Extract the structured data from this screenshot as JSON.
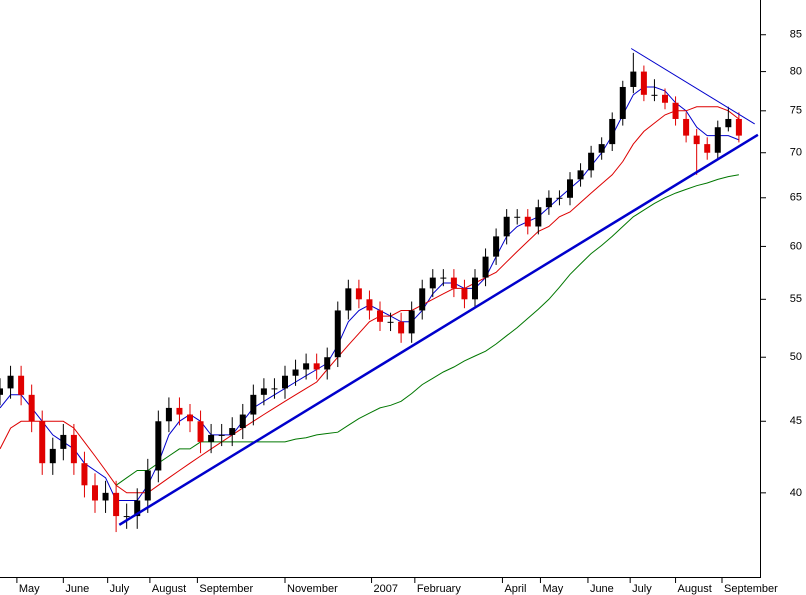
{
  "chart_data": {
    "type": "candlestick",
    "log_scale": true,
    "xlim": [
      0,
      72
    ],
    "ylim": [
      35,
      90
    ],
    "yticks": [
      40,
      45,
      50,
      55,
      60,
      65,
      70,
      75,
      80,
      85
    ],
    "xticks": [
      {
        "value": 1.6,
        "label": "May"
      },
      {
        "value": 6,
        "label": "June"
      },
      {
        "value": 10.2,
        "label": "July"
      },
      {
        "value": 14.2,
        "label": "August"
      },
      {
        "value": 18.7,
        "label": "September"
      },
      {
        "value": 27,
        "label": "November"
      },
      {
        "value": 35.2,
        "label": "2007"
      },
      {
        "value": 39.3,
        "label": "February"
      },
      {
        "value": 47.6,
        "label": "April"
      },
      {
        "value": 51.2,
        "label": "May"
      },
      {
        "value": 55.7,
        "label": "June"
      },
      {
        "value": 59.7,
        "label": "July"
      },
      {
        "value": 64,
        "label": "August"
      },
      {
        "value": 68.4,
        "label": "September"
      }
    ],
    "up_color": "#000000",
    "down_color": "#e00000",
    "x": [
      0,
      1,
      2,
      3,
      4,
      5,
      6,
      7,
      8,
      9,
      10,
      11,
      12,
      13,
      14,
      15,
      16,
      17,
      18,
      19,
      20,
      21,
      22,
      23,
      24,
      25,
      26,
      27,
      28,
      29,
      30,
      31,
      32,
      33,
      34,
      35,
      36,
      37,
      38,
      39,
      40,
      41,
      42,
      43,
      44,
      45,
      46,
      47,
      48,
      49,
      50,
      51,
      52,
      53,
      54,
      55,
      56,
      57,
      58,
      59,
      60,
      61,
      62,
      63,
      64,
      65,
      66,
      67,
      68,
      69,
      70
    ],
    "open": [
      47,
      47.5,
      48.5,
      47,
      45,
      42,
      43,
      44,
      42,
      40.5,
      39.5,
      40,
      38.5,
      38.5,
      39.5,
      41.5,
      45,
      46,
      45.5,
      45,
      43.5,
      44,
      44,
      44.5,
      45.5,
      47,
      47.5,
      47.5,
      48.5,
      49,
      49.5,
      49,
      50,
      54,
      56,
      55,
      54,
      53,
      53,
      52,
      54,
      56,
      57,
      57,
      56,
      55,
      57,
      59,
      61,
      63,
      63,
      62,
      64,
      65,
      65,
      67,
      68,
      70,
      71,
      74,
      78,
      80,
      77,
      77,
      76,
      74,
      72,
      71,
      70,
      73,
      74
    ],
    "high": [
      48.3,
      49.3,
      49.3,
      47.8,
      45.8,
      43.8,
      44.8,
      44.8,
      42.8,
      41.3,
      40.8,
      40.8,
      39.3,
      40.3,
      42.3,
      45.8,
      46.8,
      46.8,
      46.3,
      45.8,
      44.8,
      44.8,
      45.3,
      46.3,
      47.8,
      48.3,
      48.3,
      49.3,
      49.8,
      50.3,
      50.3,
      50.8,
      54.8,
      56.8,
      56.8,
      55.8,
      54.8,
      53.8,
      53.8,
      54.8,
      56.8,
      57.8,
      57.8,
      57.8,
      56.8,
      57.8,
      59.8,
      61.8,
      63.8,
      63.8,
      63.8,
      64.8,
      65.8,
      65.8,
      67.8,
      68.8,
      70.8,
      71.8,
      74.8,
      78.8,
      82.5,
      80.8,
      79,
      77.8,
      76.8,
      74.8,
      72.8,
      71.8,
      73.8,
      75.5,
      74.8
    ],
    "low": [
      46.2,
      46.7,
      46.2,
      44.2,
      41.2,
      41.2,
      42.2,
      41.2,
      39.7,
      38.7,
      38.7,
      37.5,
      37.7,
      37.7,
      38.7,
      40.7,
      44.2,
      44.7,
      44.2,
      42.7,
      42.7,
      43.2,
      43.2,
      43.7,
      44.7,
      46.2,
      46.7,
      46.7,
      47.7,
      48.2,
      48.2,
      48.2,
      49.2,
      53.2,
      54.2,
      53.2,
      52.2,
      52.2,
      51.2,
      51.2,
      53.2,
      55.2,
      56.2,
      55.2,
      54.2,
      54.2,
      56.2,
      58.2,
      60.2,
      62.2,
      61.2,
      61.2,
      63.2,
      64.2,
      64.2,
      66.2,
      67.2,
      69.2,
      70.2,
      73.2,
      77.2,
      76.2,
      76.2,
      75.2,
      73.2,
      71.2,
      67.5,
      69.2,
      69.2,
      72.5,
      71.2
    ],
    "close": [
      47.5,
      48.5,
      47,
      45,
      42,
      43,
      44,
      42,
      40.5,
      39.5,
      40,
      38.5,
      38.5,
      39.5,
      41.5,
      45,
      46,
      45.5,
      45,
      43.5,
      44,
      44,
      44.5,
      45.5,
      47,
      47.5,
      47.5,
      48.5,
      49,
      49.5,
      49,
      50,
      54,
      56,
      55,
      54,
      53,
      53,
      52,
      54,
      56,
      57,
      57,
      56,
      55,
      57,
      59,
      61,
      63,
      63,
      62,
      64,
      65,
      65,
      67,
      68,
      70,
      71,
      74,
      78,
      80,
      77,
      77,
      76,
      74,
      72,
      71,
      70,
      73,
      74,
      72
    ],
    "series": [
      {
        "color": "#0000cc",
        "values": [
          46,
          47,
          47,
          46,
          45,
          44,
          43.5,
          43,
          42,
          41.5,
          41,
          39.5,
          39.5,
          39.5,
          40.5,
          42,
          44,
          45,
          45.5,
          45,
          44,
          44,
          44,
          45,
          46,
          46.5,
          47,
          47.5,
          48,
          48.5,
          49,
          49.5,
          51,
          53,
          54,
          54.5,
          54,
          53.5,
          53,
          53,
          54,
          55.5,
          56.5,
          56.5,
          56,
          56,
          57,
          59,
          61,
          62,
          62.5,
          63,
          64,
          65,
          66,
          67,
          68.5,
          70,
          72,
          74.5,
          77,
          78,
          78,
          77.5,
          76,
          75,
          73,
          72,
          72,
          72,
          71.5
        ]
      },
      {
        "color": "#dd0000",
        "values": [
          43,
          44.5,
          45,
          45,
          45,
          45,
          45,
          44.5,
          43.5,
          42.5,
          41.5,
          40.5,
          40,
          40,
          40,
          40.5,
          41,
          41.5,
          42,
          42.5,
          43,
          43.5,
          44,
          44.5,
          45,
          45.5,
          46,
          46.5,
          47,
          47.5,
          48,
          49,
          50,
          51,
          52,
          53,
          53.5,
          53.5,
          54,
          54,
          54.5,
          55,
          55.5,
          56,
          56,
          56.5,
          57,
          57.5,
          58.5,
          59.5,
          60.5,
          61.5,
          62,
          63,
          63.5,
          64.5,
          65.5,
          66.5,
          67.5,
          69,
          71,
          72.5,
          73.5,
          74.5,
          75,
          75,
          75.5,
          75.5,
          75.5,
          75,
          74
        ]
      },
      {
        "color": "#007700",
        "values": [
          null,
          null,
          null,
          null,
          null,
          null,
          null,
          null,
          null,
          null,
          null,
          40.5,
          41,
          41.5,
          41.5,
          42,
          42.5,
          43,
          43,
          43.5,
          43.5,
          43.5,
          43.5,
          43.5,
          43.5,
          43.5,
          43.5,
          43.5,
          43.7,
          43.8,
          44,
          44.1,
          44.2,
          44.7,
          45.2,
          45.6,
          46,
          46.2,
          46.5,
          47.1,
          47.8,
          48.3,
          48.8,
          49.2,
          49.7,
          50.1,
          50.5,
          51.1,
          51.8,
          52.5,
          53.3,
          54.1,
          55,
          56.1,
          57.3,
          58.3,
          59.3,
          60.1,
          61,
          62,
          63,
          63.7,
          64.4,
          65,
          65.5,
          65.9,
          66.3,
          66.6,
          67,
          67.3,
          67.5
        ]
      }
    ],
    "trendlines": [
      {
        "color": "#0000cc",
        "x": [
          11.3,
          71.8
        ],
        "values": [
          37.95,
          72.1
        ]
      },
      {
        "color": "#0000cc",
        "x": [
          59.8,
          71.5
        ],
        "values": [
          83.1,
          73.4
        ]
      }
    ]
  }
}
